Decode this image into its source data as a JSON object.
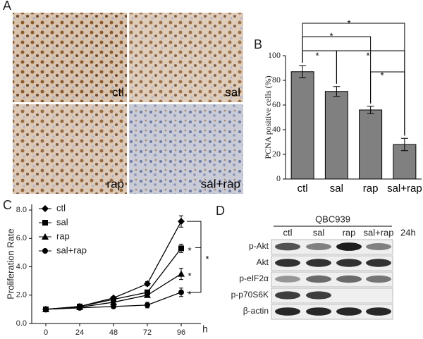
{
  "panel_labels": [
    "A",
    "B",
    "C",
    "D"
  ],
  "images": {
    "labels": [
      "ctl",
      "sal",
      "rap",
      "sal+rap"
    ]
  },
  "chart_data": [
    {
      "type": "bar",
      "y_label": "PCNA positive cells (%)",
      "categories": [
        "ctl",
        "sal",
        "rap",
        "sal+rap"
      ],
      "values": [
        87,
        71,
        56,
        28
      ],
      "errors": [
        5,
        4,
        3,
        5
      ],
      "color": "#808080",
      "ylim": [
        0,
        100
      ],
      "yticks": [
        0,
        20,
        40,
        60,
        80,
        100
      ],
      "annotations": [
        "*",
        "*",
        "*",
        "*",
        "*"
      ]
    },
    {
      "type": "line",
      "y_label": "Proliferation Rate",
      "x_label": "h",
      "x": [
        0,
        24,
        48,
        72,
        96
      ],
      "series": [
        {
          "name": "ctl",
          "marker": "diamond",
          "color": "#000000",
          "values": [
            1.0,
            1.2,
            1.8,
            2.8,
            7.2
          ],
          "errors": [
            0.05,
            0.05,
            0.1,
            0.15,
            0.4
          ]
        },
        {
          "name": "sal",
          "marker": "square",
          "color": "#000000",
          "values": [
            1.0,
            1.2,
            1.7,
            2.2,
            5.3
          ],
          "errors": [
            0.05,
            0.05,
            0.1,
            0.15,
            0.3
          ]
        },
        {
          "name": "rap",
          "marker": "triangle",
          "color": "#000000",
          "values": [
            1.0,
            1.15,
            1.5,
            2.0,
            3.5
          ],
          "errors": [
            0.05,
            0.05,
            0.1,
            0.15,
            0.4
          ]
        },
        {
          "name": "sal+rap",
          "marker": "circle",
          "color": "#000000",
          "values": [
            1.0,
            1.1,
            1.2,
            1.3,
            2.2
          ],
          "errors": [
            0.05,
            0.05,
            0.1,
            0.2,
            0.3
          ]
        }
      ],
      "xlim": [
        -10,
        110
      ],
      "xticks": [
        0,
        24,
        48,
        72,
        96
      ],
      "ylim": [
        0,
        8.4
      ],
      "yticks": [
        {
          "value": 0,
          "label": "0.0"
        },
        {
          "value": 2,
          "label": "2.0"
        },
        {
          "value": 4,
          "label": "4.0"
        },
        {
          "value": 6,
          "label": "6.0"
        },
        {
          "value": 8,
          "label": "8.0"
        }
      ],
      "annotations": [
        "*",
        "*",
        "*",
        "*"
      ]
    }
  ],
  "blot": {
    "cell_line": "QBC939",
    "lanes": [
      "ctl",
      "sal",
      "rap",
      "sal+rap"
    ],
    "time": "24h",
    "rows": [
      "p-Akt",
      "Akt",
      "p-eIF2α",
      "p-p70S6K",
      "β-actin"
    ]
  }
}
